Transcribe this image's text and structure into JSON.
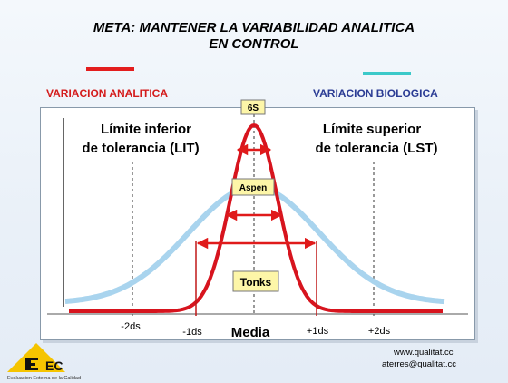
{
  "title": {
    "line1": "META: MANTENER LA VARIABILIDAD ANALITICA",
    "line2": "EN CONTROL"
  },
  "legend": {
    "analitica": {
      "label": "VARIACION ANALITICA",
      "color": "#e31d1d"
    },
    "biologica": {
      "label": "VARIACION BIOLOGICA",
      "color": "#3bc9c9"
    }
  },
  "diagram": {
    "limit_left": {
      "line1": "Límite inferior",
      "line2": "de tolerancia (LIT)"
    },
    "limit_right": {
      "line1": "Límite superior",
      "line2": "de tolerancia (LST)"
    },
    "boxes": {
      "six_s": "6S",
      "aspen": "Aspen",
      "tonks": "Tonks"
    },
    "axis_labels": {
      "m2": "-2ds",
      "m1": "-1ds",
      "media": "Media",
      "p1": "+1ds",
      "p2": "+2ds"
    },
    "colors": {
      "red_curve": "#d7141e",
      "blue_curve": "#a9d4ee",
      "box_fill": "#fdf6a8"
    }
  },
  "footer": {
    "web": "www.qualitat.cc",
    "email": "aterres@qualitat.cc",
    "logo_text": "EEEC",
    "logo_caption": "Evaluacion Externa de la Calidad"
  }
}
